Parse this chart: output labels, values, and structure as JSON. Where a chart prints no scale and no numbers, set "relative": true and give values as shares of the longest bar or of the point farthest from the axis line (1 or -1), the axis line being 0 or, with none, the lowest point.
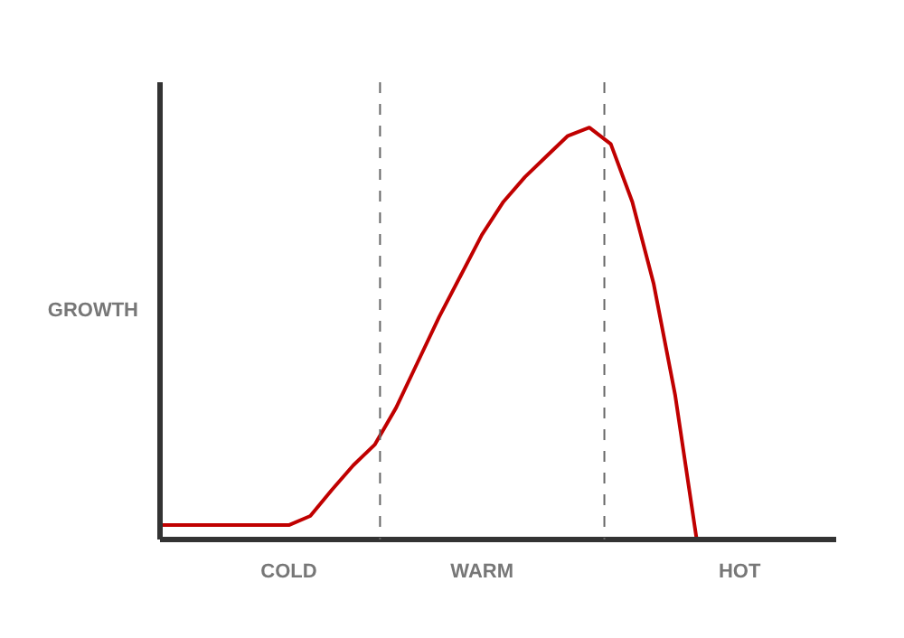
{
  "chart_data": {
    "type": "line",
    "relative": true,
    "ylabel": "GROWTH",
    "categories": [
      null,
      null,
      null,
      null,
      null,
      null,
      "COLD",
      null,
      null,
      null,
      null,
      null,
      null,
      null,
      null,
      "WARM",
      null,
      null,
      null,
      null,
      null,
      null,
      null,
      null,
      null,
      null,
      null,
      "HOT",
      null,
      null,
      null,
      null
    ],
    "series": [
      {
        "color": "#c00000",
        "values": [
          0.035,
          0.035,
          0.035,
          0.035,
          0.035,
          0.035,
          0.035,
          0.057,
          0.12,
          0.18,
          0.23,
          0.32,
          0.43,
          0.54,
          0.64,
          0.74,
          0.82,
          0.88,
          0.93,
          0.98,
          1.0,
          0.96,
          0.82,
          0.62,
          0.35,
          0.0,
          null,
          null,
          null,
          null,
          null,
          null
        ]
      }
    ],
    "grid": false,
    "marker": "none",
    "line_style": "solid"
  }
}
